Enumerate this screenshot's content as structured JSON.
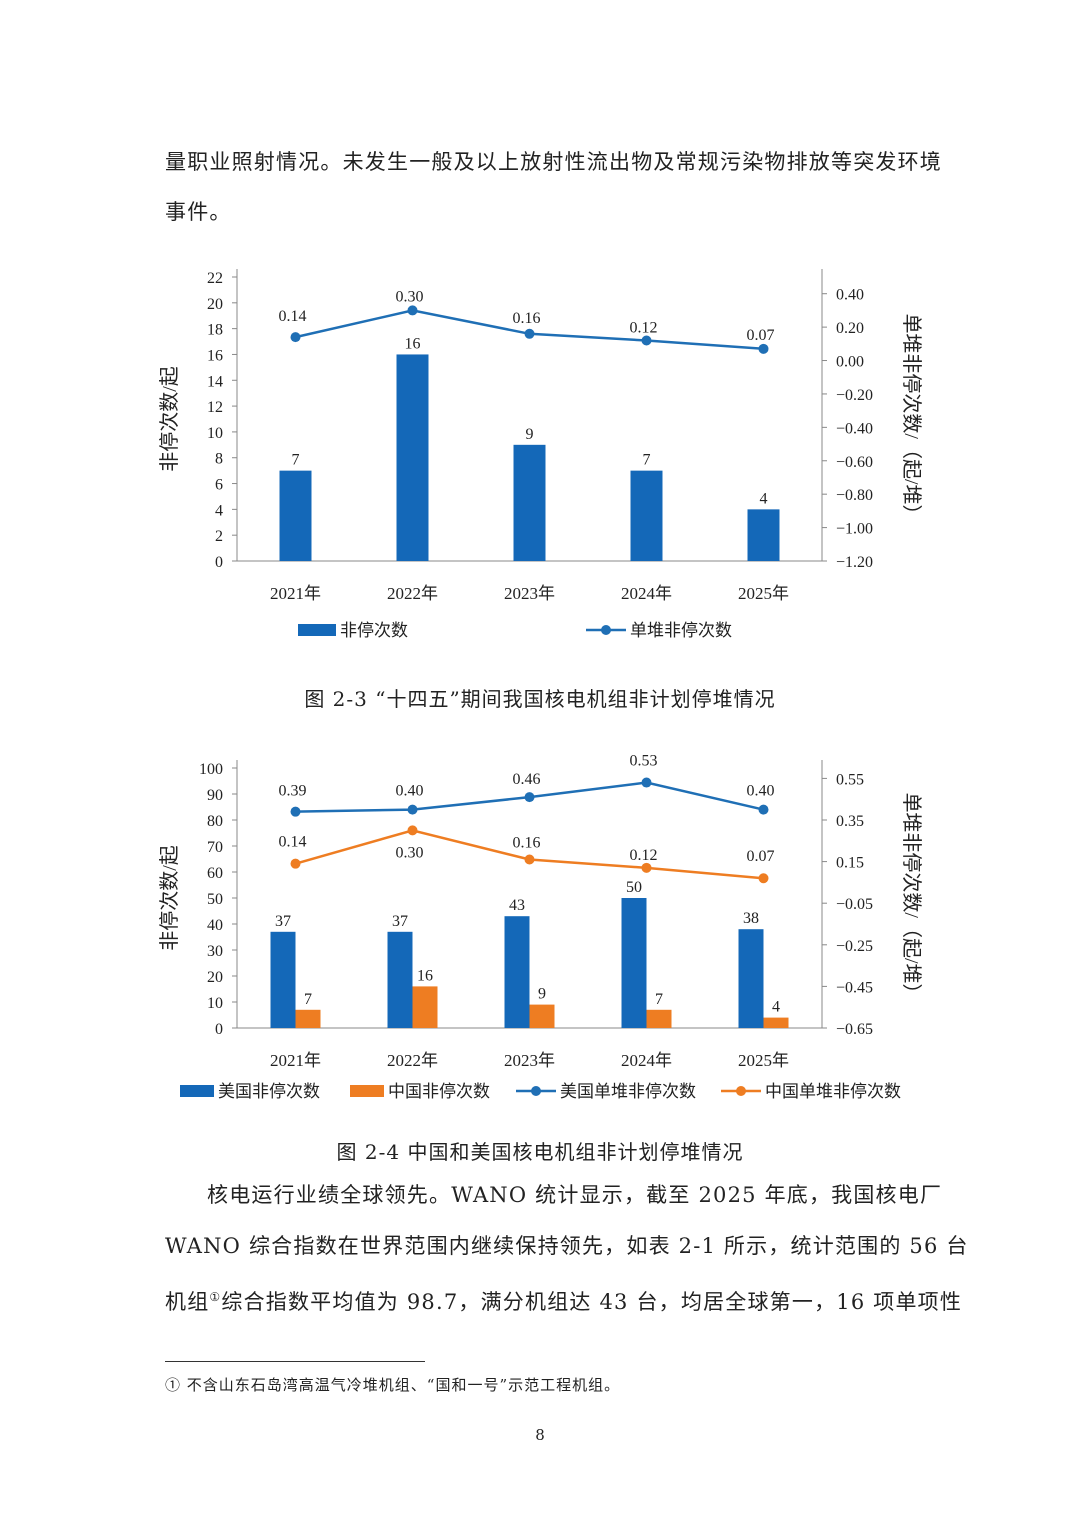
{
  "text": {
    "para1_line1": "量职业照射情况。未发生一般及以上放射性流出物及常规污染物排放等突发环境",
    "para1_line2": "事件。",
    "caption1": "图 2-3 “十四五”期间我国核电机组非计划停堆情况",
    "caption2": "图 2-4 中国和美国核电机组非计划停堆情况",
    "para2_line1": "核电运行业绩全球领先。WANO 统计显示，截至 2025 年底，我国核电厂",
    "para2_line2": "WANO 综合指数在世界范围内继续保持领先，如表 2-1 所示，统计范围的 56 台",
    "para2_line3a": "机组",
    "para2_footnote_mark": "①",
    "para2_line3b": "综合指数平均值为 98.7，满分机组达 43 台，均居全球第一，16 项单项性",
    "footnote": "① 不含山东石岛湾高温气冷堆机组、“国和一号”示范工程机组。",
    "page_number": "8"
  },
  "chart_data": [
    {
      "type": "bar",
      "categories": [
        "2021年",
        "2022年",
        "2023年",
        "2024年",
        "2025年"
      ],
      "ylabel": "非停次数/起",
      "y2label": "单堆非停次数/（起/堆）",
      "ylim": [
        0,
        22
      ],
      "yticks": [
        0,
        2,
        4,
        6,
        8,
        10,
        12,
        14,
        16,
        18,
        20,
        22
      ],
      "y2lim": [
        -1.2,
        0.5
      ],
      "y2ticks": [
        "−1.20",
        "−1.00",
        "−0.80",
        "−0.60",
        "−0.40",
        "−0.20",
        "0.00",
        "0.20",
        "0.40"
      ],
      "y2tick_values": [
        -1.2,
        -1.0,
        -0.8,
        -0.6,
        -0.4,
        -0.2,
        0.0,
        0.2,
        0.4
      ],
      "legend_position": "bottom",
      "bar_series": [
        {
          "name": "非停次数",
          "color": "#1468b8",
          "values": [
            7,
            16,
            9,
            7,
            4
          ],
          "labels": [
            "7",
            "16",
            "9",
            "7",
            "4"
          ]
        }
      ],
      "line_series": [
        {
          "name": "单堆非停次数",
          "color": "#1f6fb5",
          "values": [
            0.14,
            0.3,
            0.16,
            0.12,
            0.07
          ],
          "labels": [
            "0.14",
            "0.30",
            "0.16",
            "0.12",
            "0.07"
          ]
        }
      ]
    },
    {
      "type": "bar",
      "categories": [
        "2021年",
        "2022年",
        "2023年",
        "2024年",
        "2025年"
      ],
      "ylabel": "非停次数/起",
      "y2label": "单堆非停次数/（起/堆）",
      "ylim": [
        0,
        100
      ],
      "yticks": [
        0,
        10,
        20,
        30,
        40,
        50,
        60,
        70,
        80,
        90,
        100
      ],
      "y2lim": [
        -0.65,
        0.6
      ],
      "y2ticks": [
        "−0.65",
        "−0.45",
        "−0.25",
        "−0.05",
        "0.15",
        "0.35",
        "0.55"
      ],
      "y2tick_values": [
        -0.65,
        -0.45,
        -0.25,
        -0.05,
        0.15,
        0.35,
        0.55
      ],
      "legend_position": "bottom",
      "bar_series": [
        {
          "name": "美国非停次数",
          "color": "#1468b8",
          "values": [
            37,
            37,
            43,
            50,
            38
          ],
          "labels": [
            "37",
            "37",
            "43",
            "50",
            "38"
          ]
        },
        {
          "name": "中国非停次数",
          "color": "#ee7d22",
          "values": [
            7,
            16,
            9,
            7,
            4
          ],
          "labels": [
            "7",
            "16",
            "9",
            "7",
            "4"
          ]
        }
      ],
      "line_series": [
        {
          "name": "美国单堆非停次数",
          "color": "#1f6fb5",
          "values": [
            0.39,
            0.4,
            0.46,
            0.53,
            0.4
          ],
          "labels": [
            "0.39",
            "0.40",
            "0.46",
            "0.53",
            "0.40"
          ]
        },
        {
          "name": "中国单堆非停次数",
          "color": "#ee7d22",
          "values": [
            0.14,
            0.3,
            0.16,
            0.12,
            0.07
          ],
          "labels": [
            "0.14",
            "0.30",
            "0.16",
            "0.12",
            "0.07"
          ]
        }
      ]
    }
  ]
}
